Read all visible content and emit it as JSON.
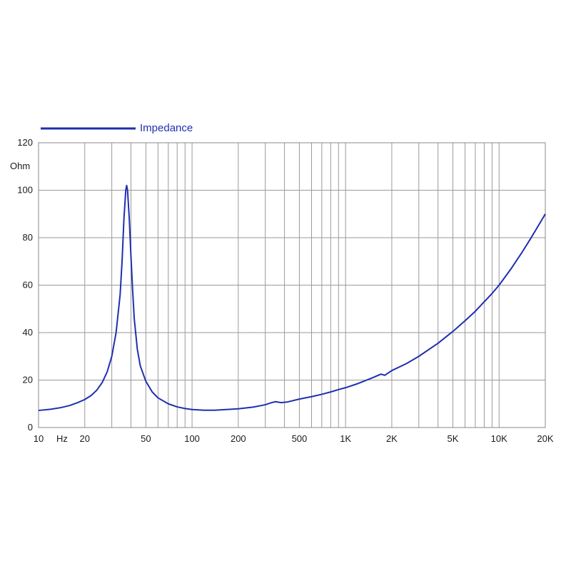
{
  "chart_data": {
    "type": "line",
    "legend": {
      "label": "Impedance",
      "color": "#1f2fb0",
      "placement": "top-left"
    },
    "xaxis": {
      "scale": "log",
      "range": [
        10,
        20000
      ],
      "unit_label": "Hz",
      "tick_values": [
        10,
        20,
        50,
        100,
        200,
        500,
        1000,
        2000,
        5000,
        10000,
        20000
      ],
      "tick_labels": [
        "10",
        "20",
        "50",
        "100",
        "200",
        "500",
        "1K",
        "2K",
        "5K",
        "10K",
        "20K"
      ],
      "grid_values": [
        20,
        30,
        40,
        50,
        60,
        70,
        80,
        90,
        100,
        200,
        300,
        400,
        500,
        600,
        700,
        800,
        900,
        1000,
        2000,
        3000,
        4000,
        5000,
        6000,
        7000,
        8000,
        9000,
        10000
      ]
    },
    "yaxis": {
      "range": [
        0,
        120
      ],
      "unit_label": "Ohm",
      "tick_values": [
        0,
        20,
        40,
        60,
        80,
        100,
        120
      ],
      "tick_labels": [
        "0",
        "20",
        "40",
        "60",
        "80",
        "100",
        "120"
      ]
    },
    "grid": true,
    "series": [
      {
        "name": "Impedance",
        "color": "#1f2fb0",
        "points": [
          [
            10,
            7.2
          ],
          [
            12,
            7.7
          ],
          [
            14,
            8.4
          ],
          [
            16,
            9.3
          ],
          [
            18,
            10.5
          ],
          [
            20,
            11.8
          ],
          [
            22,
            13.5
          ],
          [
            24,
            15.8
          ],
          [
            26,
            19.0
          ],
          [
            28,
            23.5
          ],
          [
            30,
            30.0
          ],
          [
            32,
            40.0
          ],
          [
            34,
            56.0
          ],
          [
            35,
            70.0
          ],
          [
            36,
            88.0
          ],
          [
            37,
            100.0
          ],
          [
            37.5,
            102.0
          ],
          [
            38,
            100.0
          ],
          [
            39,
            88.0
          ],
          [
            40,
            72.0
          ],
          [
            41,
            58.0
          ],
          [
            42,
            46.0
          ],
          [
            44,
            33.0
          ],
          [
            46,
            26.0
          ],
          [
            50,
            19.5
          ],
          [
            55,
            15.0
          ],
          [
            60,
            12.5
          ],
          [
            70,
            10.0
          ],
          [
            80,
            8.7
          ],
          [
            90,
            8.0
          ],
          [
            100,
            7.6
          ],
          [
            120,
            7.3
          ],
          [
            140,
            7.3
          ],
          [
            160,
            7.5
          ],
          [
            200,
            7.9
          ],
          [
            250,
            8.6
          ],
          [
            300,
            9.6
          ],
          [
            330,
            10.5
          ],
          [
            350,
            10.9
          ],
          [
            380,
            10.5
          ],
          [
            420,
            10.8
          ],
          [
            500,
            12.0
          ],
          [
            600,
            13.0
          ],
          [
            700,
            14.0
          ],
          [
            800,
            15.0
          ],
          [
            900,
            16.0
          ],
          [
            1000,
            16.8
          ],
          [
            1200,
            18.5
          ],
          [
            1500,
            21.0
          ],
          [
            1700,
            22.5
          ],
          [
            1800,
            22.0
          ],
          [
            2000,
            24.0
          ],
          [
            2500,
            27.0
          ],
          [
            3000,
            30.0
          ],
          [
            4000,
            35.5
          ],
          [
            5000,
            40.5
          ],
          [
            6000,
            45.0
          ],
          [
            7000,
            49.0
          ],
          [
            8000,
            53.0
          ],
          [
            9000,
            56.5
          ],
          [
            10000,
            60.0
          ],
          [
            12000,
            67.0
          ],
          [
            14000,
            73.5
          ],
          [
            16000,
            79.5
          ],
          [
            18000,
            85.0
          ],
          [
            20000,
            90.0
          ]
        ]
      }
    ]
  }
}
